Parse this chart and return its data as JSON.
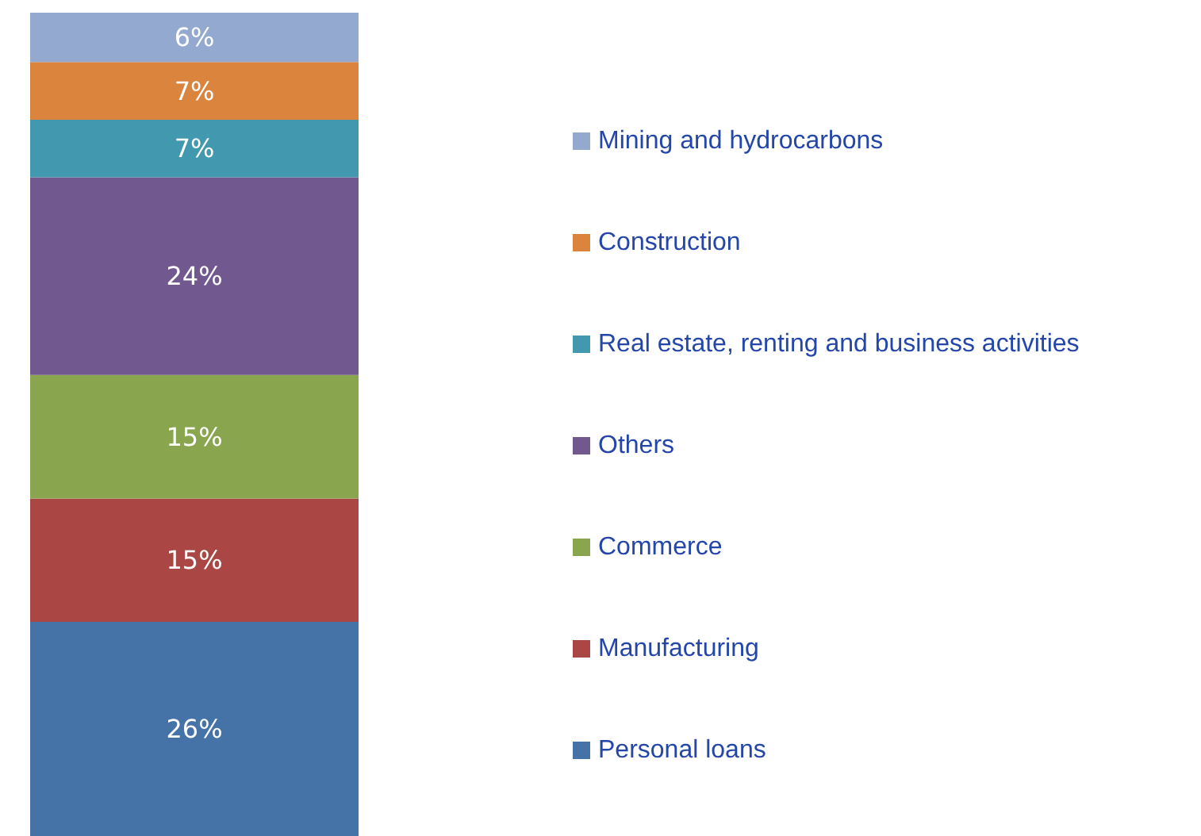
{
  "chart_data": {
    "type": "bar",
    "stacked": true,
    "categories": [
      null
    ],
    "legend": "right",
    "series": [
      {
        "name": "Personal loans",
        "color": "#4572a7",
        "values": [
          26
        ],
        "value_labels": [
          "26%"
        ]
      },
      {
        "name": "Manufacturing",
        "color": "#aa4643",
        "values": [
          15
        ],
        "value_labels": [
          "15%"
        ]
      },
      {
        "name": "Commerce",
        "color": "#89a54e",
        "values": [
          15
        ],
        "value_labels": [
          "15%"
        ]
      },
      {
        "name": "Others",
        "color": "#71588f",
        "values": [
          24
        ],
        "value_labels": [
          "24%"
        ]
      },
      {
        "name": "Real estate, renting and business activities",
        "color": "#4198af",
        "values": [
          7
        ],
        "value_labels": [
          "7%"
        ]
      },
      {
        "name": "Construction",
        "color": "#db843d",
        "values": [
          7
        ],
        "value_labels": [
          "7%"
        ]
      },
      {
        "name": "Mining and hydrocarbons",
        "color": "#93a9cf",
        "values": [
          6
        ],
        "value_labels": [
          "6%"
        ]
      }
    ]
  }
}
